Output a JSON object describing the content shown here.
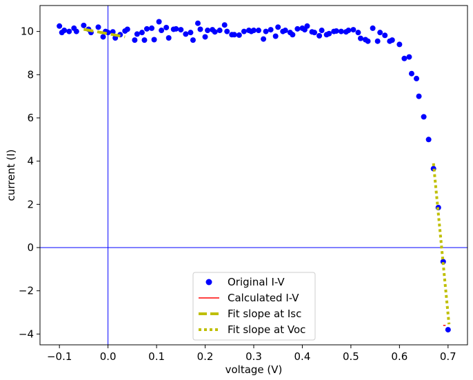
{
  "chart_data": {
    "type": "scatter",
    "xlabel": "voltage (V)",
    "ylabel": "current (I)",
    "xlim": [
      -0.14,
      0.74
    ],
    "ylim": [
      -4.5,
      11.2
    ],
    "x_ticks": [
      -0.1,
      0.0,
      0.1,
      0.2,
      0.3,
      0.4,
      0.5,
      0.6,
      0.7
    ],
    "x_tick_labels": [
      "−0.1",
      "0.0",
      "0.1",
      "0.2",
      "0.3",
      "0.4",
      "0.5",
      "0.6",
      "0.7"
    ],
    "y_ticks": [
      -4,
      -2,
      0,
      2,
      4,
      6,
      8,
      10
    ],
    "y_tick_labels": [
      "−4",
      "−2",
      "0",
      "2",
      "4",
      "6",
      "8",
      "10"
    ],
    "reference_lines": {
      "x": 0,
      "y": 0,
      "color": "#0000ff"
    },
    "grid": false,
    "legend_position": "lower-center",
    "colors": {
      "original": "#0000ff",
      "calculated": "#ff0000",
      "fit": "#bfbf00"
    },
    "series": [
      {
        "name": "Original I-V",
        "style": "markers",
        "x": [
          -0.1,
          -0.095,
          -0.09,
          -0.08,
          -0.07,
          -0.065,
          -0.05,
          -0.04,
          -0.035,
          -0.02,
          -0.01,
          -0.005,
          0.0,
          0.01,
          0.015,
          0.025,
          0.035,
          0.04,
          0.055,
          0.06,
          0.07,
          0.075,
          0.08,
          0.09,
          0.095,
          0.105,
          0.11,
          0.12,
          0.125,
          0.135,
          0.14,
          0.15,
          0.16,
          0.17,
          0.175,
          0.185,
          0.19,
          0.2,
          0.205,
          0.215,
          0.22,
          0.23,
          0.24,
          0.245,
          0.255,
          0.26,
          0.27,
          0.28,
          0.29,
          0.295,
          0.3,
          0.31,
          0.32,
          0.325,
          0.335,
          0.345,
          0.35,
          0.36,
          0.365,
          0.375,
          0.38,
          0.39,
          0.4,
          0.405,
          0.41,
          0.42,
          0.425,
          0.435,
          0.44,
          0.45,
          0.455,
          0.465,
          0.47,
          0.48,
          0.49,
          0.495,
          0.505,
          0.515,
          0.52,
          0.53,
          0.535,
          0.545,
          0.555,
          0.56,
          0.57,
          0.58,
          0.585,
          0.6,
          0.61,
          0.62,
          0.625,
          0.635,
          0.64,
          0.65,
          0.66,
          0.67,
          0.68,
          0.69,
          0.7
        ],
        "y": [
          10.25,
          9.95,
          10.05,
          10.0,
          10.15,
          10.0,
          10.28,
          10.1,
          9.95,
          10.2,
          9.75,
          10.0,
          9.95,
          9.98,
          9.7,
          9.85,
          10.02,
          10.1,
          9.6,
          9.88,
          9.95,
          9.6,
          10.12,
          10.15,
          9.62,
          10.45,
          10.05,
          10.18,
          9.7,
          10.1,
          10.12,
          10.08,
          9.88,
          9.95,
          9.6,
          10.38,
          10.1,
          9.75,
          10.05,
          10.08,
          9.98,
          10.05,
          10.3,
          10.0,
          9.85,
          9.85,
          9.83,
          10.0,
          10.05,
          10.0,
          10.05,
          10.05,
          9.65,
          10.0,
          10.08,
          9.78,
          10.2,
          10.0,
          10.05,
          9.95,
          9.85,
          10.12,
          10.15,
          10.08,
          10.25,
          9.98,
          9.95,
          9.8,
          10.05,
          9.85,
          9.9,
          10.0,
          10.02,
          10.0,
          9.98,
          10.05,
          10.08,
          9.95,
          9.68,
          9.62,
          9.55,
          10.15,
          9.55,
          9.95,
          9.82,
          9.55,
          9.6,
          9.4,
          8.75,
          8.82,
          8.05,
          7.82,
          7.0,
          6.05,
          5.0,
          3.65,
          1.85,
          -0.65,
          -3.8
        ]
      },
      {
        "name": "Calculated I-V",
        "style": "solid",
        "x": [
          0.69,
          0.695
        ],
        "y": [
          -3.6,
          -3.6
        ]
      },
      {
        "name": "Fit slope at Isc",
        "style": "dashed",
        "x": [
          -0.05,
          0.035
        ],
        "y": [
          10.1,
          9.75
        ]
      },
      {
        "name": "Fit slope at Voc",
        "style": "dotted",
        "x": [
          0.67,
          0.702
        ],
        "y": [
          3.9,
          -3.55
        ]
      }
    ]
  }
}
